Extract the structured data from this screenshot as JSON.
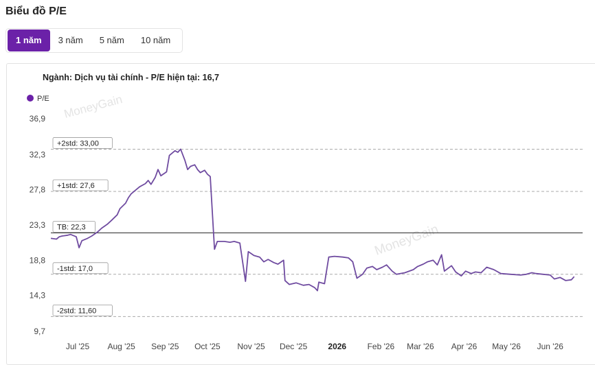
{
  "page": {
    "title": "Biểu đồ P/E"
  },
  "tabs": [
    {
      "label": "1 năm",
      "active": true
    },
    {
      "label": "3 năm",
      "active": false
    },
    {
      "label": "5 năm",
      "active": false
    },
    {
      "label": "10 năm",
      "active": false
    }
  ],
  "colors": {
    "accent": "#6b21a8",
    "line": "#6f4ba0",
    "mean_line": "#222222",
    "std_line": "#aaaaaa",
    "watermark": "#d9d9d9"
  },
  "watermark": "MoneyGain",
  "chart_data": {
    "type": "line",
    "title": "Ngành: Dịch vụ tài chính - P/E hiện tại: 16,7",
    "legend": [
      {
        "name": "P/E",
        "color": "#6b21a8"
      }
    ],
    "legend_position": "top-left",
    "grid": false,
    "ylim": [
      9.7,
      36.9
    ],
    "yticks": [
      "36,9",
      "32,3",
      "27,8",
      "23,3",
      "18,8",
      "14,3",
      "9,7"
    ],
    "ytick_values": [
      36.9,
      32.3,
      27.8,
      23.3,
      18.8,
      14.3,
      9.7
    ],
    "xticks": [
      {
        "label": "Jul '25",
        "date": "2025-07-01",
        "bold": false
      },
      {
        "label": "Aug '25",
        "date": "2025-08-01",
        "bold": false
      },
      {
        "label": "Sep '25",
        "date": "2025-09-01",
        "bold": false
      },
      {
        "label": "Oct '25",
        "date": "2025-10-01",
        "bold": false
      },
      {
        "label": "Nov '25",
        "date": "2025-11-01",
        "bold": false
      },
      {
        "label": "Dec '25",
        "date": "2025-12-01",
        "bold": false
      },
      {
        "label": "2026",
        "date": "2026-01-01",
        "bold": true
      },
      {
        "label": "Feb '26",
        "date": "2026-02-01",
        "bold": false
      },
      {
        "label": "Mar '26",
        "date": "2026-03-01",
        "bold": false
      },
      {
        "label": "Apr '26",
        "date": "2026-04-01",
        "bold": false
      },
      {
        "label": "May '26",
        "date": "2026-05-01",
        "bold": false
      },
      {
        "label": "Jun '26",
        "date": "2026-06-01",
        "bold": false
      }
    ],
    "reference_lines": [
      {
        "label": "+2std: 33,00",
        "value": 33.0,
        "style": "dashed"
      },
      {
        "label": "+1std: 27,6",
        "value": 27.6,
        "style": "dashed"
      },
      {
        "label": "TB: 22,3",
        "value": 22.3,
        "style": "solid"
      },
      {
        "label": "-1std: 17,0",
        "value": 17.0,
        "style": "dashed"
      },
      {
        "label": "-2std: 11,60",
        "value": 11.6,
        "style": "dashed"
      }
    ],
    "series": [
      {
        "name": "P/E",
        "points": [
          [
            "2025-06-12",
            21.6
          ],
          [
            "2025-06-16",
            21.5
          ],
          [
            "2025-06-18",
            21.8
          ],
          [
            "2025-06-20",
            21.9
          ],
          [
            "2025-06-24",
            22.0
          ],
          [
            "2025-06-26",
            22.1
          ],
          [
            "2025-06-30",
            21.8
          ],
          [
            "2025-07-02",
            20.4
          ],
          [
            "2025-07-04",
            21.3
          ],
          [
            "2025-07-08",
            21.6
          ],
          [
            "2025-07-11",
            21.9
          ],
          [
            "2025-07-15",
            22.4
          ],
          [
            "2025-07-18",
            22.9
          ],
          [
            "2025-07-22",
            23.4
          ],
          [
            "2025-07-25",
            23.9
          ],
          [
            "2025-07-29",
            24.6
          ],
          [
            "2025-07-31",
            25.4
          ],
          [
            "2025-08-04",
            26.1
          ],
          [
            "2025-08-06",
            26.8
          ],
          [
            "2025-08-08",
            27.3
          ],
          [
            "2025-08-12",
            27.9
          ],
          [
            "2025-08-14",
            28.2
          ],
          [
            "2025-08-18",
            28.6
          ],
          [
            "2025-08-20",
            29.0
          ],
          [
            "2025-08-22",
            28.5
          ],
          [
            "2025-08-25",
            29.4
          ],
          [
            "2025-08-27",
            30.4
          ],
          [
            "2025-08-29",
            29.6
          ],
          [
            "2025-09-02",
            30.1
          ],
          [
            "2025-09-04",
            32.2
          ],
          [
            "2025-09-08",
            32.8
          ],
          [
            "2025-09-10",
            32.6
          ],
          [
            "2025-09-12",
            33.0
          ],
          [
            "2025-09-15",
            31.6
          ],
          [
            "2025-09-17",
            30.4
          ],
          [
            "2025-09-19",
            30.8
          ],
          [
            "2025-09-22",
            31.0
          ],
          [
            "2025-09-24",
            30.4
          ],
          [
            "2025-09-26",
            30.0
          ],
          [
            "2025-09-29",
            30.3
          ],
          [
            "2025-10-01",
            29.8
          ],
          [
            "2025-10-03",
            29.5
          ],
          [
            "2025-10-06",
            20.2
          ],
          [
            "2025-10-08",
            21.2
          ],
          [
            "2025-10-13",
            21.2
          ],
          [
            "2025-10-17",
            21.1
          ],
          [
            "2025-10-20",
            21.2
          ],
          [
            "2025-10-24",
            21.0
          ],
          [
            "2025-10-28",
            16.1
          ],
          [
            "2025-10-30",
            19.9
          ],
          [
            "2025-11-03",
            19.4
          ],
          [
            "2025-11-07",
            19.2
          ],
          [
            "2025-11-10",
            18.6
          ],
          [
            "2025-11-13",
            18.9
          ],
          [
            "2025-11-17",
            18.5
          ],
          [
            "2025-11-20",
            18.3
          ],
          [
            "2025-11-24",
            18.8
          ],
          [
            "2025-11-25",
            16.2
          ],
          [
            "2025-11-28",
            15.7
          ],
          [
            "2025-12-03",
            15.9
          ],
          [
            "2025-12-08",
            15.6
          ],
          [
            "2025-12-12",
            15.7
          ],
          [
            "2025-12-16",
            15.3
          ],
          [
            "2025-12-18",
            14.9
          ],
          [
            "2025-12-19",
            16.0
          ],
          [
            "2025-12-23",
            15.8
          ],
          [
            "2025-12-26",
            19.2
          ],
          [
            "2025-12-30",
            19.3
          ],
          [
            "2026-01-05",
            19.2
          ],
          [
            "2026-01-09",
            19.1
          ],
          [
            "2026-01-12",
            18.6
          ],
          [
            "2026-01-15",
            16.5
          ],
          [
            "2026-01-19",
            17.0
          ],
          [
            "2026-01-22",
            17.8
          ],
          [
            "2026-01-26",
            18.0
          ],
          [
            "2026-01-29",
            17.6
          ],
          [
            "2026-02-02",
            17.9
          ],
          [
            "2026-02-05",
            18.2
          ],
          [
            "2026-02-09",
            17.4
          ],
          [
            "2026-02-12",
            17.0
          ],
          [
            "2026-02-18",
            17.2
          ],
          [
            "2026-02-24",
            17.6
          ],
          [
            "2026-02-27",
            18.0
          ],
          [
            "2026-03-03",
            18.3
          ],
          [
            "2026-03-06",
            18.6
          ],
          [
            "2026-03-10",
            18.8
          ],
          [
            "2026-03-13",
            18.2
          ],
          [
            "2026-03-16",
            19.5
          ],
          [
            "2026-03-18",
            17.4
          ],
          [
            "2026-03-23",
            18.1
          ],
          [
            "2026-03-26",
            17.3
          ],
          [
            "2026-03-30",
            16.8
          ],
          [
            "2026-04-02",
            17.4
          ],
          [
            "2026-04-06",
            17.1
          ],
          [
            "2026-04-09",
            17.3
          ],
          [
            "2026-04-13",
            17.2
          ],
          [
            "2026-04-17",
            17.9
          ],
          [
            "2026-04-22",
            17.6
          ],
          [
            "2026-04-27",
            17.1
          ],
          [
            "2026-05-04",
            17.0
          ],
          [
            "2026-05-11",
            16.9
          ],
          [
            "2026-05-15",
            17.0
          ],
          [
            "2026-05-19",
            17.2
          ],
          [
            "2026-05-22",
            17.1
          ],
          [
            "2026-05-27",
            17.0
          ],
          [
            "2026-06-01",
            16.9
          ],
          [
            "2026-06-04",
            16.4
          ],
          [
            "2026-06-08",
            16.6
          ],
          [
            "2026-06-12",
            16.2
          ],
          [
            "2026-06-16",
            16.3
          ],
          [
            "2026-06-18",
            16.7
          ]
        ]
      }
    ]
  }
}
